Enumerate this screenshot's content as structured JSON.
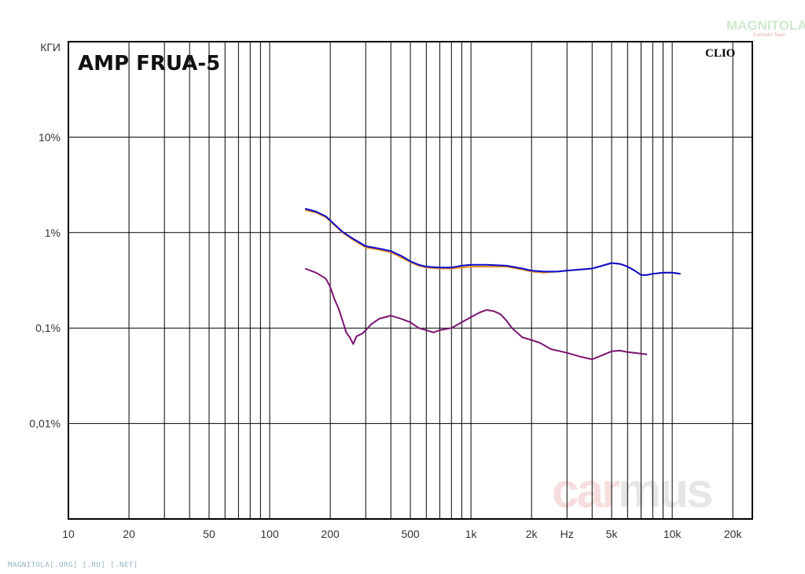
{
  "colors": {
    "frame": "#000000",
    "grid": "#000000",
    "series_thd_left": "#e88a1a",
    "series_thd_right": "#0a0ad0",
    "series_low": "#7a1470",
    "watermark_car": "#f6dede",
    "watermark_mus": "#e6e6e6"
  },
  "labels": {
    "title": "AMP FRUA-5",
    "clio": "CLIO",
    "watermark_car": "car",
    "watermark_mus": "mus",
    "logo_top": "MAGNITOLA",
    "logo_sub": "CarAudio Team",
    "footer": "MAGNITOLA[.ORG] [.RU] [.NET]"
  },
  "chart_data": {
    "type": "line",
    "x_scale": "log",
    "y_scale": "log",
    "xlim": [
      10,
      25000
    ],
    "ylim": [
      0.001,
      100
    ],
    "y_ticks": [
      {
        "label": "КГИ",
        "value": 100
      },
      {
        "label": "10%",
        "value": 10
      },
      {
        "label": "1%",
        "value": 1
      },
      {
        "label": "0,1%",
        "value": 0.1
      },
      {
        "label": "0,01%",
        "value": 0.01
      }
    ],
    "x_ticks": [
      {
        "label": "10",
        "value": 10
      },
      {
        "label": "20",
        "value": 20
      },
      {
        "label": "50",
        "value": 50
      },
      {
        "label": "100",
        "value": 100
      },
      {
        "label": "200",
        "value": 200
      },
      {
        "label": "500",
        "value": 500
      },
      {
        "label": "1k",
        "value": 1000
      },
      {
        "label": "2k",
        "value": 2000
      },
      {
        "label": "Hz",
        "value": 3000
      },
      {
        "label": "5k",
        "value": 5000
      },
      {
        "label": "10k",
        "value": 10000
      },
      {
        "label": "20k",
        "value": 20000
      }
    ],
    "grid": true,
    "series": [
      {
        "color_key": "series_thd_left",
        "points": [
          [
            150,
            1.72
          ],
          [
            170,
            1.62
          ],
          [
            190,
            1.45
          ],
          [
            210,
            1.2
          ],
          [
            230,
            1.0
          ],
          [
            260,
            0.84
          ],
          [
            300,
            0.7
          ],
          [
            350,
            0.66
          ],
          [
            400,
            0.62
          ],
          [
            450,
            0.55
          ],
          [
            500,
            0.49
          ],
          [
            550,
            0.45
          ],
          [
            600,
            0.43
          ],
          [
            700,
            0.42
          ],
          [
            800,
            0.42
          ],
          [
            900,
            0.43
          ],
          [
            1000,
            0.44
          ],
          [
            1200,
            0.44
          ],
          [
            1500,
            0.44
          ],
          [
            1800,
            0.41
          ],
          [
            2000,
            0.39
          ],
          [
            2300,
            0.38
          ],
          [
            2700,
            0.39
          ],
          [
            3000,
            0.4
          ],
          [
            3500,
            0.41
          ],
          [
            4000,
            0.42
          ],
          [
            4500,
            0.45
          ],
          [
            5000,
            0.48
          ],
          [
            5500,
            0.47
          ],
          [
            6000,
            0.44
          ],
          [
            6500,
            0.4
          ],
          [
            7000,
            0.36
          ],
          [
            7500,
            0.36
          ],
          [
            8000,
            0.37
          ],
          [
            9000,
            0.38
          ],
          [
            10000,
            0.38
          ],
          [
            11000,
            0.37
          ]
        ]
      },
      {
        "color_key": "series_thd_right",
        "points": [
          [
            150,
            1.78
          ],
          [
            170,
            1.66
          ],
          [
            190,
            1.48
          ],
          [
            210,
            1.22
          ],
          [
            230,
            1.02
          ],
          [
            260,
            0.86
          ],
          [
            300,
            0.72
          ],
          [
            350,
            0.68
          ],
          [
            400,
            0.64
          ],
          [
            450,
            0.57
          ],
          [
            500,
            0.5
          ],
          [
            550,
            0.46
          ],
          [
            600,
            0.44
          ],
          [
            700,
            0.43
          ],
          [
            800,
            0.43
          ],
          [
            900,
            0.45
          ],
          [
            1000,
            0.46
          ],
          [
            1200,
            0.46
          ],
          [
            1500,
            0.45
          ],
          [
            1800,
            0.42
          ],
          [
            2000,
            0.4
          ],
          [
            2300,
            0.39
          ],
          [
            2700,
            0.39
          ],
          [
            3000,
            0.4
          ],
          [
            3500,
            0.41
          ],
          [
            4000,
            0.42
          ],
          [
            4500,
            0.45
          ],
          [
            5000,
            0.48
          ],
          [
            5500,
            0.47
          ],
          [
            6000,
            0.44
          ],
          [
            6500,
            0.4
          ],
          [
            7000,
            0.36
          ],
          [
            7500,
            0.36
          ],
          [
            8000,
            0.37
          ],
          [
            9000,
            0.38
          ],
          [
            10000,
            0.38
          ],
          [
            11000,
            0.37
          ]
        ]
      },
      {
        "color_key": "series_low",
        "points": [
          [
            150,
            0.42
          ],
          [
            170,
            0.38
          ],
          [
            190,
            0.33
          ],
          [
            200,
            0.27
          ],
          [
            210,
            0.2
          ],
          [
            220,
            0.16
          ],
          [
            230,
            0.12
          ],
          [
            240,
            0.09
          ],
          [
            250,
            0.08
          ],
          [
            260,
            0.068
          ],
          [
            270,
            0.082
          ],
          [
            290,
            0.088
          ],
          [
            320,
            0.11
          ],
          [
            350,
            0.125
          ],
          [
            400,
            0.135
          ],
          [
            450,
            0.125
          ],
          [
            500,
            0.115
          ],
          [
            550,
            0.1
          ],
          [
            600,
            0.095
          ],
          [
            650,
            0.09
          ],
          [
            700,
            0.095
          ],
          [
            800,
            0.1
          ],
          [
            900,
            0.115
          ],
          [
            1000,
            0.13
          ],
          [
            1100,
            0.145
          ],
          [
            1200,
            0.155
          ],
          [
            1300,
            0.15
          ],
          [
            1400,
            0.14
          ],
          [
            1500,
            0.12
          ],
          [
            1600,
            0.1
          ],
          [
            1800,
            0.08
          ],
          [
            2000,
            0.075
          ],
          [
            2200,
            0.07
          ],
          [
            2500,
            0.06
          ],
          [
            3000,
            0.055
          ],
          [
            3500,
            0.05
          ],
          [
            4000,
            0.047
          ],
          [
            4500,
            0.052
          ],
          [
            5000,
            0.057
          ],
          [
            5500,
            0.058
          ],
          [
            6000,
            0.056
          ],
          [
            7000,
            0.054
          ],
          [
            7500,
            0.053
          ]
        ]
      }
    ]
  }
}
